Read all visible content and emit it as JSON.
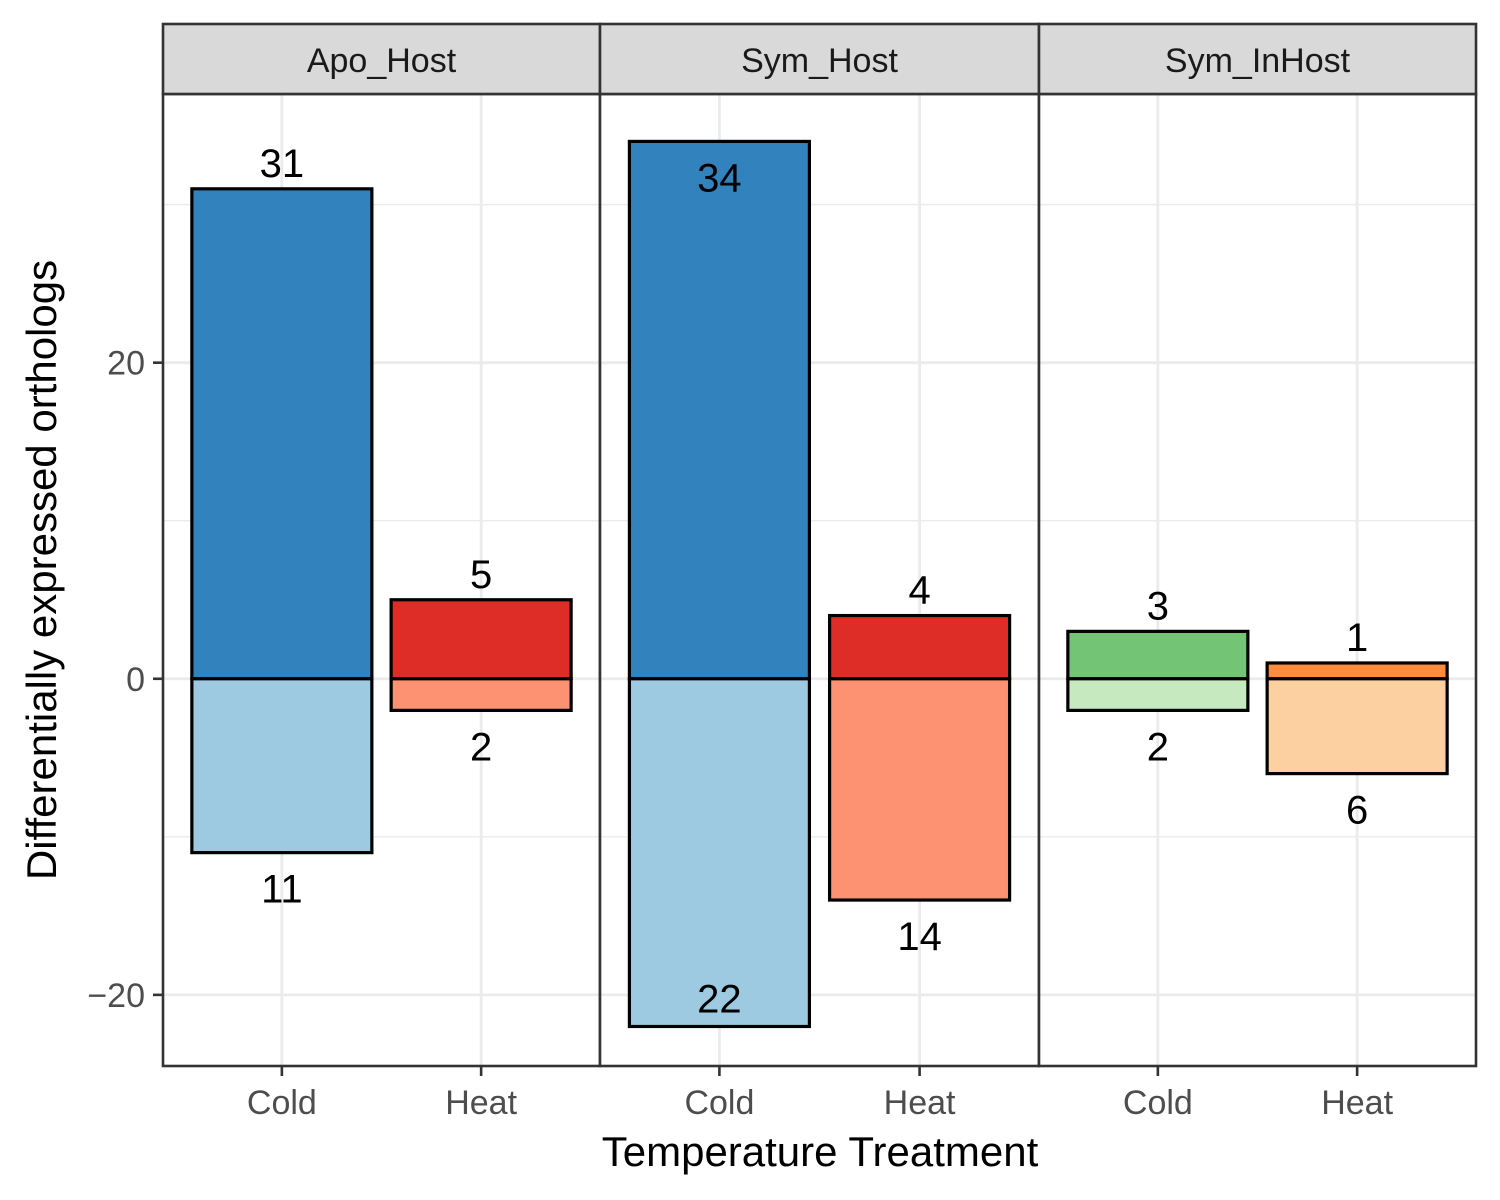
{
  "chart_data": {
    "type": "bar",
    "layout": "faceted-diverging",
    "xlabel": "Temperature Treatment",
    "ylabel": "Differentially expressed orthologs",
    "ylim": [
      -24.5,
      37
    ],
    "yticks": [
      -20,
      0,
      20
    ],
    "ytick_labels": [
      "−20",
      "0",
      "20"
    ],
    "grid": true,
    "legend": "none",
    "categories": [
      "Cold",
      "Heat"
    ],
    "panels": [
      {
        "name": "Apo_Host",
        "bars": [
          {
            "category": "Cold",
            "up": 31,
            "down": -11,
            "up_label": "31",
            "down_label": "11",
            "up_color": "#3182bd",
            "down_color": "#9ecae1",
            "up_label_pos": "outside",
            "down_label_pos": "outside"
          },
          {
            "category": "Heat",
            "up": 5,
            "down": -2,
            "up_label": "5",
            "down_label": "2",
            "up_color": "#de2d26",
            "down_color": "#fc9272",
            "up_label_pos": "outside",
            "down_label_pos": "outside"
          }
        ]
      },
      {
        "name": "Sym_Host",
        "bars": [
          {
            "category": "Cold",
            "up": 34,
            "down": -22,
            "up_label": "34",
            "down_label": "22",
            "up_color": "#3182bd",
            "down_color": "#9ecae1",
            "up_label_pos": "inside",
            "down_label_pos": "inside"
          },
          {
            "category": "Heat",
            "up": 4,
            "down": -14,
            "up_label": "4",
            "down_label": "14",
            "up_color": "#de2d26",
            "down_color": "#fc9272",
            "up_label_pos": "outside",
            "down_label_pos": "outside"
          }
        ]
      },
      {
        "name": "Sym_InHost",
        "bars": [
          {
            "category": "Cold",
            "up": 3,
            "down": -2,
            "up_label": "3",
            "down_label": "2",
            "up_color": "#74c476",
            "down_color": "#c7e9c0",
            "up_label_pos": "outside",
            "down_label_pos": "outside"
          },
          {
            "category": "Heat",
            "up": 1,
            "down": -6,
            "up_label": "1",
            "down_label": "6",
            "up_color": "#fd8d3c",
            "down_color": "#fdd0a2",
            "up_label_pos": "outside",
            "down_label_pos": "outside"
          }
        ]
      }
    ],
    "colors": {
      "strip_fill": "#d9d9d9",
      "panel_border": "#333333",
      "grid": "#ebebeb",
      "bar_outline": "#000000"
    }
  }
}
